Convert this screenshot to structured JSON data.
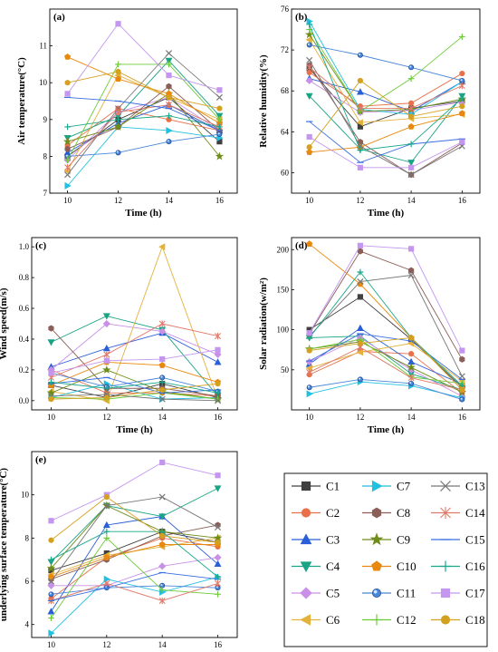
{
  "figure": {
    "title": "",
    "legend": [
      {
        "name": "C1",
        "color": "#404040",
        "marker": "square"
      },
      {
        "name": "C2",
        "color": "#e8704a",
        "marker": "circle"
      },
      {
        "name": "C3",
        "color": "#2a5fd8",
        "marker": "triangle-up"
      },
      {
        "name": "C4",
        "color": "#1aa384",
        "marker": "triangle-down"
      },
      {
        "name": "C5",
        "color": "#c990e8",
        "marker": "diamond"
      },
      {
        "name": "C6",
        "color": "#e3b23c",
        "marker": "triangle-left"
      },
      {
        "name": "C7",
        "color": "#22c0e0",
        "marker": "triangle-right"
      },
      {
        "name": "C8",
        "color": "#8b5e58",
        "marker": "hexagon"
      },
      {
        "name": "C9",
        "color": "#6f8c1a",
        "marker": "star"
      },
      {
        "name": "C10",
        "color": "#e8880e",
        "marker": "pentagon"
      },
      {
        "name": "C11",
        "color": "#4a86d8",
        "marker": "circle-shaded"
      },
      {
        "name": "C12",
        "color": "#6ecb3a",
        "marker": "plus"
      },
      {
        "name": "C13",
        "color": "#777777",
        "marker": "x"
      },
      {
        "name": "C14",
        "color": "#e07a6a",
        "marker": "asterisk"
      },
      {
        "name": "C15",
        "color": "#3a6fe0",
        "marker": "hline"
      },
      {
        "name": "C16",
        "color": "#1aa88a",
        "marker": "plus"
      },
      {
        "name": "C17",
        "color": "#c496f0",
        "marker": "square"
      },
      {
        "name": "C18",
        "color": "#d4a020",
        "marker": "circle"
      }
    ]
  },
  "chart_data": [
    {
      "type": "line",
      "panel_label": "(a)",
      "xlabel": "Time (h)",
      "ylabel": "Air temperature(°C)",
      "x": [
        10,
        12,
        14,
        16
      ],
      "xlim": [
        9.3,
        16.7
      ],
      "ylim": [
        7,
        12
      ],
      "yticks": [
        7,
        8,
        9,
        10,
        11
      ],
      "ytick_labels": [
        "7",
        "8",
        "9",
        "10",
        "11"
      ],
      "series": [
        {
          "name": "C1",
          "values": [
            8.0,
            9.0,
            9.6,
            8.4
          ]
        },
        {
          "name": "C2",
          "values": [
            8.3,
            9.3,
            9.0,
            8.7
          ]
        },
        {
          "name": "C3",
          "values": [
            8.1,
            8.9,
            9.4,
            8.7
          ]
        },
        {
          "name": "C4",
          "values": [
            8.5,
            9.1,
            10.6,
            9.1
          ]
        },
        {
          "name": "C5",
          "values": [
            7.9,
            9.2,
            9.6,
            8.7
          ]
        },
        {
          "name": "C6",
          "values": [
            7.6,
            10.2,
            9.6,
            9.0
          ]
        },
        {
          "name": "C7",
          "values": [
            7.2,
            8.8,
            8.7,
            8.5
          ]
        },
        {
          "name": "C8",
          "values": [
            8.2,
            8.8,
            9.9,
            8.7
          ]
        },
        {
          "name": "C9",
          "values": [
            8.4,
            8.8,
            9.7,
            8.0
          ]
        },
        {
          "name": "C10",
          "values": [
            10.7,
            10.1,
            9.7,
            8.9
          ]
        },
        {
          "name": "C11",
          "values": [
            8.0,
            8.1,
            8.4,
            8.6
          ]
        },
        {
          "name": "C12",
          "values": [
            7.9,
            10.5,
            10.5,
            9.0
          ]
        },
        {
          "name": "C13",
          "values": [
            7.5,
            9.3,
            10.8,
            9.6
          ]
        },
        {
          "name": "C14",
          "values": [
            7.7,
            9.2,
            9.4,
            8.8
          ]
        },
        {
          "name": "C15",
          "values": [
            9.6,
            9.5,
            9.3,
            8.7
          ]
        },
        {
          "name": "C16",
          "values": [
            8.8,
            9.0,
            9.1,
            8.8
          ]
        },
        {
          "name": "C17",
          "values": [
            9.7,
            11.6,
            10.2,
            9.8
          ]
        },
        {
          "name": "C18",
          "values": [
            10.0,
            10.3,
            9.6,
            9.3
          ]
        }
      ]
    },
    {
      "type": "line",
      "panel_label": "(b)",
      "xlabel": "Time (h)",
      "ylabel": "Relative humidity(%)",
      "x": [
        10,
        12,
        14,
        16
      ],
      "xlim": [
        9.3,
        16.7
      ],
      "ylim": [
        58,
        76
      ],
      "yticks": [
        60,
        64,
        68,
        72,
        76
      ],
      "ytick_labels": [
        "60",
        "64",
        "68",
        "72",
        "76"
      ],
      "series": [
        {
          "name": "C1",
          "values": [
            70.2,
            64.5,
            66.3,
            67.0
          ]
        },
        {
          "name": "C2",
          "values": [
            69.8,
            66.5,
            66.8,
            69.7
          ]
        },
        {
          "name": "C3",
          "values": [
            69.2,
            67.9,
            66.0,
            68.9
          ]
        },
        {
          "name": "C4",
          "values": [
            67.5,
            62.3,
            61.0,
            67.5
          ]
        },
        {
          "name": "C5",
          "values": [
            69.0,
            65.9,
            66.1,
            66.9
          ]
        },
        {
          "name": "C6",
          "values": [
            73.0,
            64.9,
            65.3,
            65.7
          ]
        },
        {
          "name": "C7",
          "values": [
            74.8,
            66.2,
            65.7,
            68.9
          ]
        },
        {
          "name": "C8",
          "values": [
            70.5,
            63.0,
            59.8,
            62.9
          ]
        },
        {
          "name": "C9",
          "values": [
            73.5,
            66.0,
            66.2,
            67.2
          ]
        },
        {
          "name": "C10",
          "values": [
            62.0,
            62.5,
            64.5,
            65.8
          ]
        },
        {
          "name": "C11",
          "values": [
            72.5,
            71.5,
            70.3,
            69.0
          ]
        },
        {
          "name": "C12",
          "values": [
            74.0,
            66.0,
            69.2,
            73.3
          ]
        },
        {
          "name": "C13",
          "values": [
            71.0,
            62.6,
            59.8,
            62.6
          ]
        },
        {
          "name": "C14",
          "values": [
            70.3,
            66.3,
            66.3,
            68.5
          ]
        },
        {
          "name": "C15",
          "values": [
            65.0,
            61.0,
            62.8,
            63.3
          ]
        },
        {
          "name": "C16",
          "values": [
            74.5,
            62.2,
            62.8,
            67.3
          ]
        },
        {
          "name": "C17",
          "values": [
            63.5,
            60.5,
            60.5,
            63.0
          ]
        },
        {
          "name": "C18",
          "values": [
            62.5,
            69.0,
            65.5,
            66.5
          ]
        }
      ]
    },
    {
      "type": "line",
      "panel_label": "(c)",
      "xlabel": "Time (h)",
      "ylabel": "Wind speed(m/s)",
      "x": [
        10,
        12,
        14,
        16
      ],
      "xlim": [
        9.3,
        16.7
      ],
      "ylim": [
        -0.06,
        1.06
      ],
      "yticks": [
        0.0,
        0.2,
        0.4,
        0.6,
        0.8,
        1.0
      ],
      "ytick_labels": [
        "0.0",
        "0.2",
        "0.4",
        "0.6",
        "0.8",
        "1.0"
      ],
      "series": [
        {
          "name": "C1",
          "values": [
            0.1,
            0.02,
            0.11,
            0.02
          ]
        },
        {
          "name": "C2",
          "values": [
            0.2,
            0.05,
            0.05,
            0.03
          ]
        },
        {
          "name": "C3",
          "values": [
            0.22,
            0.34,
            0.44,
            0.25
          ]
        },
        {
          "name": "C4",
          "values": [
            0.38,
            0.55,
            0.46,
            0.03
          ]
        },
        {
          "name": "C5",
          "values": [
            0.2,
            0.5,
            0.45,
            0.3
          ]
        },
        {
          "name": "C6",
          "values": [
            0.06,
            0.0,
            1.0,
            0.01
          ]
        },
        {
          "name": "C7",
          "values": [
            0.02,
            0.11,
            0.01,
            0.02
          ]
        },
        {
          "name": "C8",
          "values": [
            0.47,
            0.08,
            0.08,
            0.03
          ]
        },
        {
          "name": "C9",
          "values": [
            0.05,
            0.2,
            0.06,
            0.01
          ]
        },
        {
          "name": "C10",
          "values": [
            0.1,
            0.25,
            0.23,
            0.12
          ]
        },
        {
          "name": "C11",
          "values": [
            0.18,
            0.09,
            0.15,
            0.06
          ]
        },
        {
          "name": "C12",
          "values": [
            0.02,
            0.01,
            0.05,
            0.01
          ]
        },
        {
          "name": "C13",
          "values": [
            0.03,
            0.04,
            0.01,
            0.0
          ]
        },
        {
          "name": "C14",
          "values": [
            0.15,
            0.3,
            0.5,
            0.42
          ]
        },
        {
          "name": "C15",
          "values": [
            0.11,
            0.15,
            0.05,
            0.07
          ]
        },
        {
          "name": "C16",
          "values": [
            0.12,
            0.08,
            0.12,
            0.05
          ]
        },
        {
          "name": "C17",
          "values": [
            0.18,
            0.26,
            0.27,
            0.33
          ]
        },
        {
          "name": "C18",
          "values": [
            0.01,
            0.02,
            0.07,
            0.11
          ]
        }
      ]
    },
    {
      "type": "line",
      "panel_label": "(d)",
      "xlabel": "Time (h)",
      "ylabel": "Solar radiation(w/m²)",
      "x": [
        10,
        12,
        14,
        16
      ],
      "xlim": [
        9.3,
        16.7
      ],
      "ylim": [
        0,
        215
      ],
      "yticks": [
        50,
        100,
        150,
        200
      ],
      "ytick_labels": [
        "50",
        "100",
        "150",
        "200"
      ],
      "series": [
        {
          "name": "C1",
          "values": [
            100,
            141,
            88,
            28
          ]
        },
        {
          "name": "C2",
          "values": [
            44,
            73,
            70,
            21
          ]
        },
        {
          "name": "C3",
          "values": [
            57,
            102,
            60,
            32
          ]
        },
        {
          "name": "C4",
          "values": [
            90,
            92,
            45,
            25
          ]
        },
        {
          "name": "C5",
          "values": [
            60,
            90,
            50,
            17
          ]
        },
        {
          "name": "C6",
          "values": [
            52,
            72,
            83,
            36
          ]
        },
        {
          "name": "C7",
          "values": [
            20,
            35,
            30,
            15
          ]
        },
        {
          "name": "C8",
          "values": [
            95,
            198,
            174,
            63
          ]
        },
        {
          "name": "C9",
          "values": [
            76,
            85,
            53,
            22
          ]
        },
        {
          "name": "C10",
          "values": [
            207,
            157,
            90,
            30
          ]
        },
        {
          "name": "C11",
          "values": [
            28,
            38,
            33,
            13
          ]
        },
        {
          "name": "C12",
          "values": [
            76,
            88,
            41,
            33
          ]
        },
        {
          "name": "C13",
          "values": [
            92,
            160,
            168,
            42
          ]
        },
        {
          "name": "C14",
          "values": [
            47,
            78,
            40,
            25
          ]
        },
        {
          "name": "C15",
          "values": [
            61,
            95,
            86,
            38
          ]
        },
        {
          "name": "C16",
          "values": [
            90,
            172,
            90,
            30
          ]
        },
        {
          "name": "C17",
          "values": [
            96,
            205,
            201,
            74
          ]
        },
        {
          "name": "C18",
          "values": [
            74,
            83,
            90,
            25
          ]
        }
      ]
    },
    {
      "type": "line",
      "panel_label": "(e)",
      "xlabel": "Time (h)",
      "ylabel": "underlying surface temperature(°C)",
      "x": [
        10,
        12,
        14,
        16
      ],
      "xlim": [
        9.3,
        16.7
      ],
      "ylim": [
        3.4,
        12.0
      ],
      "yticks": [
        4,
        6,
        8,
        10
      ],
      "ytick_labels": [
        "4",
        "6",
        "8",
        "10"
      ],
      "series": [
        {
          "name": "C1",
          "values": [
            6.5,
            7.3,
            8.3,
            7.8
          ]
        },
        {
          "name": "C2",
          "values": [
            5.2,
            7.1,
            8.0,
            7.6
          ]
        },
        {
          "name": "C3",
          "values": [
            4.6,
            8.6,
            9.0,
            6.8
          ]
        },
        {
          "name": "C4",
          "values": [
            6.9,
            9.5,
            9.0,
            10.3
          ]
        },
        {
          "name": "C5",
          "values": [
            5.8,
            5.8,
            6.7,
            7.1
          ]
        },
        {
          "name": "C6",
          "values": [
            6.3,
            7.2,
            7.6,
            8.0
          ]
        },
        {
          "name": "C7",
          "values": [
            3.6,
            6.1,
            5.5,
            6.2
          ]
        },
        {
          "name": "C8",
          "values": [
            6.1,
            7.0,
            8.1,
            8.6
          ]
        },
        {
          "name": "C9",
          "values": [
            6.6,
            9.5,
            8.3,
            8.0
          ]
        },
        {
          "name": "C10",
          "values": [
            6.2,
            7.1,
            7.7,
            7.7
          ]
        },
        {
          "name": "C11",
          "values": [
            5.4,
            5.7,
            5.8,
            5.7
          ]
        },
        {
          "name": "C12",
          "values": [
            4.3,
            8.0,
            5.6,
            5.4
          ]
        },
        {
          "name": "C13",
          "values": [
            6.0,
            9.5,
            9.9,
            8.5
          ]
        },
        {
          "name": "C14",
          "values": [
            5.1,
            5.9,
            5.1,
            5.9
          ]
        },
        {
          "name": "C15",
          "values": [
            5.1,
            5.7,
            6.4,
            6.1
          ]
        },
        {
          "name": "C16",
          "values": [
            7.0,
            8.3,
            8.3,
            6.2
          ]
        },
        {
          "name": "C17",
          "values": [
            8.8,
            10.0,
            11.5,
            10.9
          ]
        },
        {
          "name": "C18",
          "values": [
            7.9,
            9.9,
            8.1,
            7.8
          ]
        }
      ]
    }
  ]
}
